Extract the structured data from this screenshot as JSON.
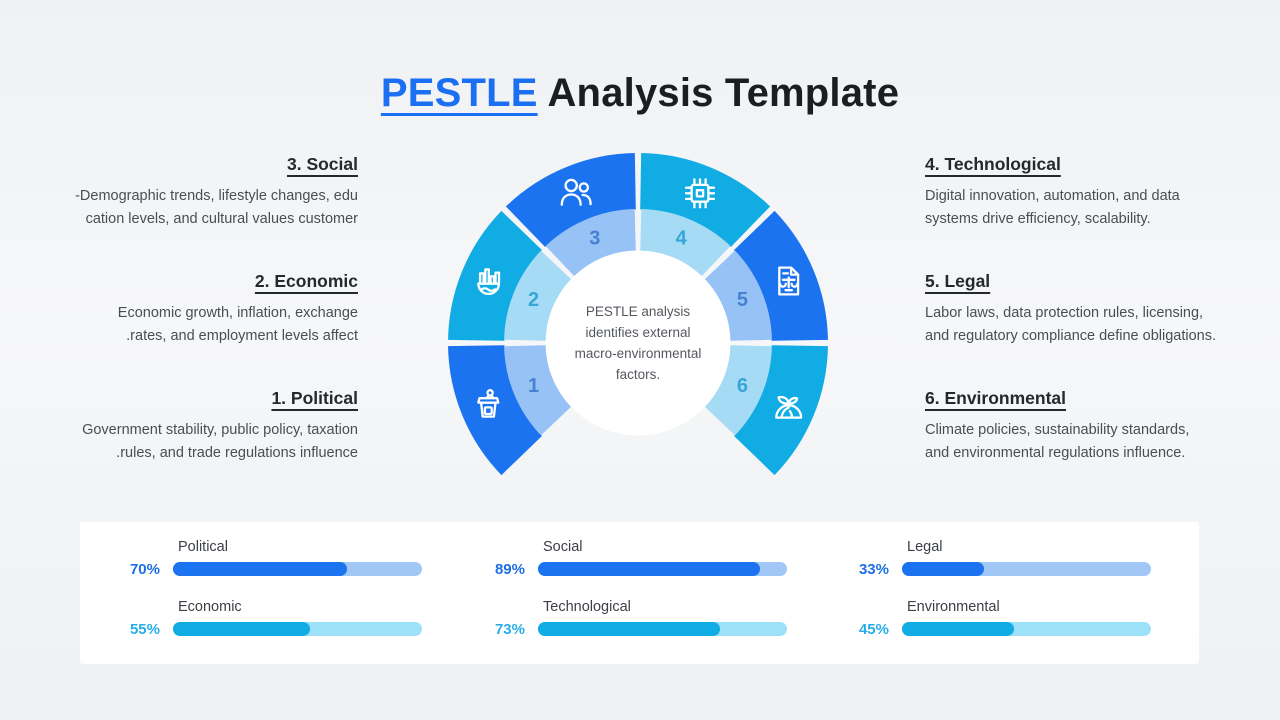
{
  "title": {
    "highlight": "PESTLE",
    "rest": " Analysis Template"
  },
  "center_text": {
    "lines": [
      "PESTLE analysis",
      "identifies external",
      "macro-environmental",
      "factors."
    ]
  },
  "colors": {
    "blue": "#1c73f0",
    "cyan": "#12ace4",
    "light_blue": "#97c2f6",
    "light_cyan": "#a6dbf5",
    "num_blue": "#4781d2",
    "num_cyan": "#36a5d8",
    "track_blue": "#a1c7f7",
    "track_cyan": "#9ce1f8",
    "pct_blue": "#1d6fe2",
    "pct_cyan": "#29ade8",
    "title_blue": "#1a6ff2"
  },
  "wheel": {
    "segments": [
      {
        "num": "1",
        "name": "political",
        "icon": "podium-icon",
        "theme": "blue"
      },
      {
        "num": "2",
        "name": "economic",
        "icon": "globe-chart-icon",
        "theme": "cyan"
      },
      {
        "num": "3",
        "name": "social",
        "icon": "people-icon",
        "theme": "blue"
      },
      {
        "num": "4",
        "name": "technological",
        "icon": "chip-icon",
        "theme": "cyan"
      },
      {
        "num": "5",
        "name": "legal",
        "icon": "legal-document-icon",
        "theme": "blue"
      },
      {
        "num": "6",
        "name": "environmental",
        "icon": "sprout-icon",
        "theme": "cyan"
      }
    ]
  },
  "sections": {
    "left": [
      {
        "heading": "3. Social",
        "lines": [
          "Demographic trends, lifestyle changes, edu-",
          "cation levels, and cultural values customer"
        ]
      },
      {
        "heading": "2. Economic",
        "lines": [
          "Economic growth, inflation, exchange",
          "rates, and employment levels affect."
        ]
      },
      {
        "heading": "1. Political",
        "lines": [
          "Government stability, public policy, taxation",
          "rules, and trade regulations influence."
        ]
      }
    ],
    "right": [
      {
        "heading": "4. Technological",
        "lines": [
          "Digital innovation, automation, and data",
          "systems drive efficiency, scalability."
        ]
      },
      {
        "heading": "5. Legal",
        "lines": [
          "Labor laws, data protection rules, licensing,",
          "and regulatory compliance define obligations."
        ]
      },
      {
        "heading": "6. Environmental",
        "lines": [
          "Climate policies, sustainability standards,",
          "and environmental regulations influence."
        ]
      }
    ]
  },
  "bars": {
    "columns": [
      [
        {
          "label": "Political",
          "value": 70,
          "theme": "blue"
        },
        {
          "label": "Economic",
          "value": 55,
          "theme": "cyan"
        }
      ],
      [
        {
          "label": "Social",
          "value": 89,
          "theme": "blue"
        },
        {
          "label": "Technological",
          "value": 73,
          "theme": "cyan"
        }
      ],
      [
        {
          "label": "Legal",
          "value": 33,
          "theme": "blue"
        },
        {
          "label": "Environmental",
          "value": 45,
          "theme": "cyan"
        }
      ]
    ]
  }
}
